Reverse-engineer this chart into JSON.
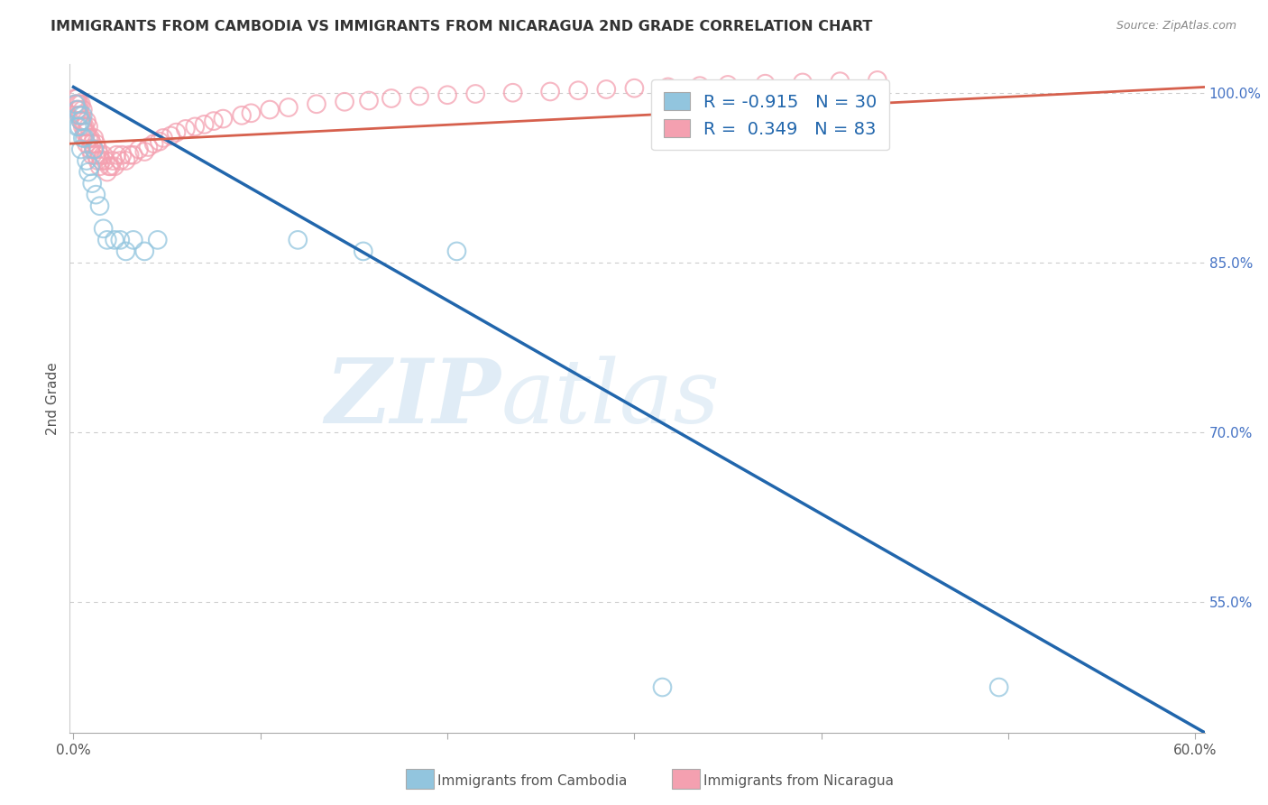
{
  "title": "IMMIGRANTS FROM CAMBODIA VS IMMIGRANTS FROM NICARAGUA 2ND GRADE CORRELATION CHART",
  "source": "Source: ZipAtlas.com",
  "ylabel": "2nd Grade",
  "blue_color": "#92c5de",
  "pink_color": "#f4a0b0",
  "blue_line_color": "#2166ac",
  "pink_line_color": "#d6604d",
  "watermark_zip": "ZIP",
  "watermark_atlas": "atlas",
  "xlim": [
    -0.002,
    0.605
  ],
  "ylim": [
    0.435,
    1.025
  ],
  "ytick_vals": [
    1.0,
    0.85,
    0.7,
    0.55
  ],
  "ytick_labels": [
    "100.0%",
    "85.0%",
    "70.0%",
    "55.0%"
  ],
  "xtick_vals": [
    0.0,
    0.6
  ],
  "xtick_show": [
    0.0,
    0.1,
    0.2,
    0.3,
    0.4,
    0.5,
    0.6
  ],
  "blue_trendline_x": [
    0.0,
    0.605
  ],
  "blue_trendline_y": [
    1.005,
    0.435
  ],
  "pink_trendline_x": [
    -0.002,
    0.605
  ],
  "pink_trendline_y": [
    0.955,
    1.005
  ],
  "legend_blue_label": "R = -0.915   N = 30",
  "legend_pink_label": "R =  0.349   N = 83",
  "legend_text_color": "#2166ac",
  "background_color": "#ffffff",
  "grid_color": "#cccccc",
  "cam_points_x": [
    0.001,
    0.002,
    0.002,
    0.003,
    0.003,
    0.004,
    0.004,
    0.005,
    0.005,
    0.006,
    0.007,
    0.008,
    0.009,
    0.01,
    0.011,
    0.012,
    0.014,
    0.016,
    0.018,
    0.022,
    0.025,
    0.028,
    0.032,
    0.038,
    0.045,
    0.12,
    0.155,
    0.205,
    0.315,
    0.495
  ],
  "cam_points_y": [
    0.99,
    0.97,
    0.985,
    0.97,
    0.98,
    0.95,
    0.975,
    0.96,
    0.98,
    0.96,
    0.94,
    0.93,
    0.935,
    0.92,
    0.95,
    0.91,
    0.9,
    0.88,
    0.87,
    0.87,
    0.87,
    0.86,
    0.87,
    0.86,
    0.87,
    0.87,
    0.86,
    0.86,
    0.475,
    0.475
  ],
  "nic_points_x": [
    0.001,
    0.001,
    0.002,
    0.002,
    0.002,
    0.003,
    0.003,
    0.003,
    0.004,
    0.004,
    0.004,
    0.005,
    0.005,
    0.005,
    0.006,
    0.006,
    0.007,
    0.007,
    0.007,
    0.008,
    0.008,
    0.009,
    0.009,
    0.01,
    0.01,
    0.011,
    0.011,
    0.012,
    0.012,
    0.013,
    0.013,
    0.014,
    0.014,
    0.015,
    0.016,
    0.017,
    0.018,
    0.019,
    0.02,
    0.021,
    0.022,
    0.023,
    0.025,
    0.026,
    0.028,
    0.03,
    0.032,
    0.035,
    0.038,
    0.04,
    0.043,
    0.046,
    0.048,
    0.052,
    0.055,
    0.06,
    0.065,
    0.07,
    0.075,
    0.08,
    0.09,
    0.095,
    0.105,
    0.115,
    0.13,
    0.145,
    0.158,
    0.17,
    0.185,
    0.2,
    0.215,
    0.235,
    0.255,
    0.27,
    0.285,
    0.3,
    0.318,
    0.335,
    0.35,
    0.37,
    0.39,
    0.41,
    0.43
  ],
  "nic_points_y": [
    0.99,
    0.995,
    0.985,
    0.99,
    0.995,
    0.98,
    0.985,
    0.99,
    0.975,
    0.98,
    0.99,
    0.97,
    0.975,
    0.985,
    0.965,
    0.97,
    0.955,
    0.965,
    0.975,
    0.96,
    0.97,
    0.95,
    0.96,
    0.945,
    0.955,
    0.95,
    0.96,
    0.945,
    0.955,
    0.94,
    0.95,
    0.935,
    0.945,
    0.94,
    0.945,
    0.94,
    0.93,
    0.935,
    0.935,
    0.94,
    0.935,
    0.945,
    0.94,
    0.945,
    0.94,
    0.945,
    0.945,
    0.95,
    0.948,
    0.952,
    0.955,
    0.957,
    0.96,
    0.962,
    0.965,
    0.968,
    0.97,
    0.972,
    0.975,
    0.977,
    0.98,
    0.982,
    0.985,
    0.987,
    0.99,
    0.992,
    0.993,
    0.995,
    0.997,
    0.998,
    0.999,
    1.0,
    1.001,
    1.002,
    1.003,
    1.004,
    1.005,
    1.006,
    1.007,
    1.008,
    1.009,
    1.01,
    1.011
  ]
}
